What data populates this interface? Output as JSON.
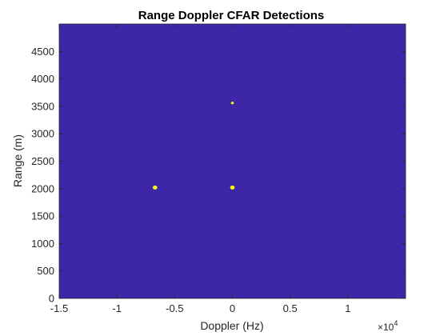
{
  "chart_data": {
    "type": "heatmap",
    "title": "Range Doppler CFAR Detections",
    "xlabel": "Doppler (Hz)",
    "ylabel": "Range (m)",
    "x_exponent_base": "×10",
    "x_exponent_power": "4",
    "xlim": [
      -15000,
      15000
    ],
    "ylim": [
      0,
      5000
    ],
    "xticks": [
      -15000,
      -10000,
      -5000,
      0,
      5000,
      10000
    ],
    "xtick_labels": [
      "-1.5",
      "-1",
      "-0.5",
      "0",
      "0.5",
      "1"
    ],
    "yticks": [
      0,
      500,
      1000,
      1500,
      2000,
      2500,
      3000,
      3500,
      4000,
      4500
    ],
    "ytick_labels": [
      "0",
      "500",
      "1000",
      "1500",
      "2000",
      "2500",
      "3000",
      "3500",
      "4000",
      "4500"
    ],
    "grid": false,
    "background_color": "#3d26a8",
    "detection_color": "#f9fb0e",
    "detections": [
      {
        "doppler": -6700,
        "range": 2020,
        "size": "medium"
      },
      {
        "doppler": 0,
        "range": 2020,
        "size": "medium"
      },
      {
        "doppler": 0,
        "range": 3560,
        "size": "small"
      }
    ]
  }
}
